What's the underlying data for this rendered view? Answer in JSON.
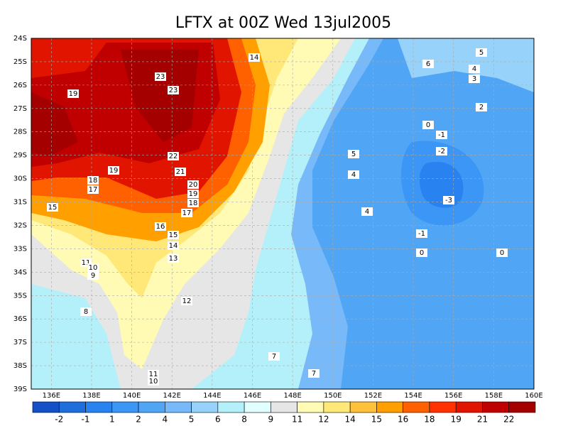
{
  "title": "LFTX at 00Z Wed 13jul2005",
  "map": {
    "xlim": [
      135,
      160
    ],
    "ylim": [
      -39,
      -24
    ],
    "xticks": [
      {
        "value": 136,
        "label": "136E"
      },
      {
        "value": 138,
        "label": "138E"
      },
      {
        "value": 140,
        "label": "140E"
      },
      {
        "value": 142,
        "label": "142E"
      },
      {
        "value": 144,
        "label": "144E"
      },
      {
        "value": 146,
        "label": "146E"
      },
      {
        "value": 148,
        "label": "148E"
      },
      {
        "value": 150,
        "label": "150E"
      },
      {
        "value": 152,
        "label": "152E"
      },
      {
        "value": 154,
        "label": "154E"
      },
      {
        "value": 156,
        "label": "156E"
      },
      {
        "value": 158,
        "label": "158E"
      },
      {
        "value": 160,
        "label": "160E"
      }
    ],
    "yticks": [
      {
        "value": -24,
        "label": "24S"
      },
      {
        "value": -25,
        "label": "25S"
      },
      {
        "value": -26,
        "label": "26S"
      },
      {
        "value": -27,
        "label": "27S"
      },
      {
        "value": -28,
        "label": "28S"
      },
      {
        "value": -29,
        "label": "29S"
      },
      {
        "value": -30,
        "label": "30S"
      },
      {
        "value": -31,
        "label": "31S"
      },
      {
        "value": -32,
        "label": "32S"
      },
      {
        "value": -33,
        "label": "33S"
      },
      {
        "value": -34,
        "label": "34S"
      },
      {
        "value": -35,
        "label": "35S"
      },
      {
        "value": -36,
        "label": "36S"
      },
      {
        "value": -37,
        "label": "37S"
      },
      {
        "value": -38,
        "label": "38S"
      },
      {
        "value": -39,
        "label": "39S"
      }
    ],
    "grid": true
  },
  "colorbar": {
    "levels": [
      -2,
      -1,
      1,
      2,
      4,
      5,
      6,
      8,
      9,
      11,
      12,
      14,
      15,
      16,
      18,
      19,
      21,
      22
    ],
    "colors": [
      "#1450c8",
      "#1e6edc",
      "#2882f0",
      "#3c96f5",
      "#50a5f5",
      "#78b9fa",
      "#96d2fa",
      "#b4f0fa",
      "#e1ffff",
      "#e6e6e6",
      "#fffab4",
      "#ffe878",
      "#ffc03c",
      "#ffa000",
      "#ff6000",
      "#ff3200",
      "#e11400",
      "#c00000",
      "#a50000"
    ]
  },
  "contour_labels": [
    14,
    23,
    23,
    19,
    22,
    19,
    21,
    18,
    20,
    17,
    19,
    18,
    15,
    17,
    16,
    15,
    14,
    13,
    11,
    10,
    9,
    12,
    8,
    7,
    7,
    11,
    10,
    5,
    6,
    4,
    3,
    2,
    0,
    -1,
    5,
    -2,
    4,
    -3,
    4,
    -1,
    0,
    0
  ]
}
